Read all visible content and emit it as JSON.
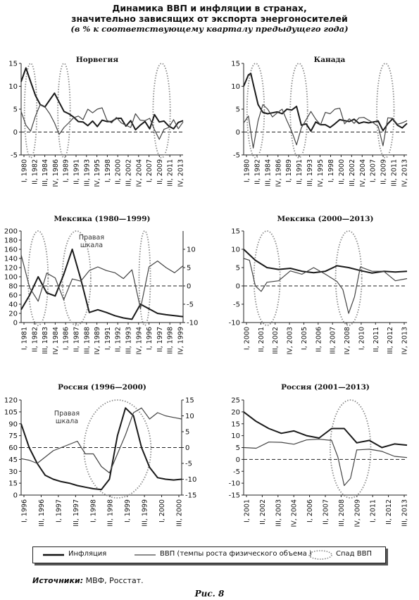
{
  "title_line1": "Динамика ВВП и инфляции в странах,",
  "title_line2": "значительно зависящих от экспорта энергоносителей",
  "subtitle": "(в % к соответствующему кварталу предыдущего года)",
  "legend": {
    "inflation": "Инфляция",
    "gdp": "ВВП (темпы роста физического объема )",
    "recession": "Спад ВВП"
  },
  "sources_label": "Источники:",
  "sources_text": " МВФ, Росстат.",
  "figure_label": "Рис. 8",
  "colors": {
    "inflation": "#1a1a1a",
    "gdp": "#444444",
    "recession": "#8a8a8a",
    "zero_line": "#222222"
  },
  "chart_data": [
    {
      "type": "line",
      "title": "Норвегия",
      "x_tick_labels": [
        "I, 1980",
        "II, 1982",
        "III, 1984",
        "IV, 1986",
        "I, 1989",
        "II, 1991",
        "III, 1993",
        "IV, 1995",
        "I, 1998",
        "II, 2000",
        "III, 2002",
        "IV, 2004",
        "I, 2007",
        "II, 2009",
        "III, 2011",
        "IV, 2013"
      ],
      "ylim": [
        -5,
        15
      ],
      "y_ticks": [
        -5,
        0,
        5,
        10,
        15
      ],
      "recession_periods": [
        "1981-1982",
        "1988-1989",
        "2008-2010"
      ],
      "series": [
        {
          "role": "inflation",
          "x": [
            1980,
            1981,
            1982,
            1983,
            1984,
            1985,
            1986,
            1987,
            1988,
            1989,
            1990,
            1991,
            1992,
            1993,
            1994,
            1995,
            1996,
            1997,
            1998,
            1999,
            2000,
            2001,
            2002,
            2003,
            2004,
            2005,
            2006,
            2007,
            2008,
            2009,
            2010,
            2011,
            2012,
            2013,
            2014
          ],
          "values": [
            11,
            14,
            11,
            8,
            6,
            5.5,
            7,
            8.5,
            6.5,
            4.5,
            4,
            3.3,
            2.3,
            2.2,
            1.4,
            2.4,
            1.2,
            2.6,
            2.3,
            2.3,
            3,
            3,
            1.3,
            2.5,
            0.5,
            1.5,
            2.3,
            0.7,
            3.8,
            2.2,
            2.4,
            1.3,
            0.7,
            2.1,
            2.5
          ]
        },
        {
          "role": "gdp",
          "x": [
            1980,
            1981,
            1982,
            1983,
            1984,
            1985,
            1986,
            1987,
            1988,
            1989,
            1990,
            1991,
            1992,
            1993,
            1994,
            1995,
            1996,
            1997,
            1998,
            1999,
            2000,
            2001,
            2002,
            2003,
            2004,
            2005,
            2006,
            2007,
            2008,
            2009,
            2010,
            2011,
            2012,
            2013,
            2014
          ],
          "values": [
            4.5,
            1.5,
            0.2,
            3.5,
            6,
            5.5,
            4,
            2,
            -0.5,
            1,
            2,
            3.1,
            3.5,
            2.7,
            5,
            4.2,
            5,
            5.3,
            2.6,
            2,
            3.2,
            2,
            1.5,
            1,
            4,
            2.6,
            2.5,
            3,
            0.5,
            -1.6,
            0.6,
            1,
            2.7,
            0.7,
            2.2
          ]
        }
      ]
    },
    {
      "type": "line",
      "title": "Канада",
      "x_tick_labels": [
        "I, 1980",
        "II, 1982",
        "III, 1984",
        "IV, 1986",
        "I, 1989",
        "II, 1991",
        "III, 1993",
        "IV, 1995",
        "I, 1998",
        "II, 2000",
        "III, 2002",
        "IV, 2004",
        "I, 2007",
        "II, 2009",
        "III, 2011",
        "IV, 2013"
      ],
      "ylim": [
        -5,
        15
      ],
      "y_ticks": [
        -5,
        0,
        5,
        10,
        15
      ],
      "recession_periods": [
        "1981-1983",
        "1990-1992",
        "2008-2010"
      ],
      "series": [
        {
          "role": "inflation",
          "x": [
            1980,
            1981,
            1981.5,
            1982,
            1983,
            1984,
            1985,
            1986,
            1987,
            1988,
            1989,
            1990,
            1991,
            1992,
            1993,
            1994,
            1995,
            1996,
            1997,
            1998,
            1999,
            2000,
            2001,
            2002,
            2003,
            2004,
            2005,
            2006,
            2007,
            2008,
            2009,
            2010,
            2011,
            2012,
            2013,
            2014
          ],
          "values": [
            10,
            12.5,
            12.8,
            10.5,
            6,
            4.3,
            4,
            4.2,
            4.4,
            4,
            5,
            4.8,
            5.6,
            1.5,
            1.8,
            0.2,
            2.2,
            1.6,
            1.6,
            1,
            1.8,
            2.7,
            2.5,
            2.3,
            2.8,
            1.9,
            2.2,
            2,
            2.2,
            2.4,
            0.3,
            1.8,
            2.9,
            1.5,
            0.9,
            1.9
          ]
        },
        {
          "role": "gdp",
          "x": [
            1980,
            1981,
            1982,
            1983,
            1984,
            1985,
            1986,
            1987,
            1988,
            1989,
            1990,
            1991,
            1992,
            1993,
            1994,
            1995,
            1996,
            1997,
            1998,
            1999,
            2000,
            2001,
            2002,
            2003,
            2004,
            2005,
            2006,
            2007,
            2008,
            2009,
            2010,
            2011,
            2012,
            2013,
            2014
          ],
          "values": [
            2,
            3.5,
            -3.5,
            2.5,
            6,
            5,
            3.3,
            4.2,
            5,
            2.5,
            0.2,
            -2.8,
            0.9,
            2.7,
            4.5,
            2.8,
            1.6,
            4.3,
            4,
            5,
            5.2,
            1.8,
            2.9,
            1.9,
            3.1,
            3.2,
            2.6,
            2,
            1.2,
            -3,
            3.1,
            3,
            1.7,
            2,
            2.5
          ]
        }
      ]
    },
    {
      "type": "line",
      "title": "Мексика (1980—1999)",
      "x_tick_labels": [
        "I, 1981",
        "II, 1982",
        "III, 1983",
        "IV, 1984",
        "I, 1986",
        "II, 1987",
        "III, 1988",
        "IV, 1989",
        "I, 1991",
        "II, 1992",
        "III, 1993",
        "IV, 1994",
        "I, 1996",
        "II, 1997",
        "III, 1998",
        "IV, 1999"
      ],
      "y_left_ticks": [
        0,
        20,
        40,
        60,
        80,
        100,
        120,
        140,
        160,
        180,
        200
      ],
      "y_right_ticks": [
        -10,
        -5,
        0,
        5,
        10
      ],
      "ylim_left": [
        0,
        200
      ],
      "ylim_right": [
        -10,
        15
      ],
      "annotation": "Правая шкала",
      "recession_periods": [
        "1982-1983",
        "1986-1988",
        "1995"
      ],
      "series": [
        {
          "role": "inflation",
          "axis": "left",
          "x": [
            1981,
            1982,
            1983,
            1984,
            1985,
            1986,
            1987,
            1988,
            1989,
            1990,
            1991,
            1992,
            1993,
            1994,
            1995,
            1996,
            1997,
            1998,
            1999,
            2000
          ],
          "values": [
            28,
            60,
            100,
            65,
            58,
            105,
            160,
            95,
            22,
            28,
            22,
            15,
            10,
            7,
            40,
            30,
            20,
            17,
            15,
            13
          ]
        },
        {
          "role": "gdp",
          "axis": "right",
          "x": [
            1981,
            1982,
            1983,
            1984,
            1985,
            1986,
            1987,
            1988,
            1989,
            1990,
            1991,
            1992,
            1993,
            1994,
            1995,
            1996,
            1997,
            1998,
            1999,
            2000
          ],
          "values": [
            8.5,
            -0.5,
            -4.2,
            3.5,
            2.2,
            -3.8,
            1.9,
            1.3,
            4.2,
            5.2,
            4.2,
            3.6,
            2,
            4.4,
            -6.2,
            5.2,
            6.8,
            5,
            3.6,
            5.5
          ]
        }
      ]
    },
    {
      "type": "line",
      "title": "Мексика (2000—2013)",
      "x_tick_labels": [
        "I, 2000",
        "II, 2001",
        "III, 2002",
        "IV, 2003",
        "I, 2005",
        "II, 2006",
        "III, 2007",
        "IV, 2008",
        "I, 2010",
        "II, 2011",
        "III, 2012",
        "IV, 2013"
      ],
      "ylim": [
        -10,
        15
      ],
      "y_ticks": [
        -10,
        -5,
        0,
        5,
        10,
        15
      ],
      "recession_periods": [
        "2001-2002",
        "2008-2009"
      ],
      "series": [
        {
          "role": "inflation",
          "x": [
            2000,
            2001,
            2002,
            2003,
            2004,
            2005,
            2006,
            2007,
            2008,
            2009,
            2010,
            2011,
            2012,
            2013,
            2014
          ],
          "values": [
            10,
            7,
            5,
            4.5,
            4.8,
            4,
            3.6,
            4,
            5.5,
            5,
            4.2,
            3.5,
            4,
            3.8,
            4
          ]
        },
        {
          "role": "gdp",
          "x": [
            2000,
            2000.5,
            2001,
            2001.5,
            2002,
            2003,
            2004,
            2005,
            2006,
            2007,
            2008,
            2008.5,
            2009,
            2009.5,
            2010,
            2011,
            2012,
            2013,
            2014
          ],
          "values": [
            7.5,
            7,
            0,
            -1.5,
            1,
            1.4,
            4.1,
            3.2,
            5,
            3.2,
            1.2,
            -1,
            -7.5,
            -3,
            5.2,
            4,
            4,
            1.4,
            2
          ]
        }
      ]
    },
    {
      "type": "line",
      "title": "Россия (1996—2000)",
      "x_tick_labels": [
        "I, 1996",
        "III, 1996",
        "I, 1997",
        "III, 1997",
        "I, 1998",
        "III, 1998",
        "I, 1999",
        "III, 1999",
        "I, 2000",
        "III, 2000"
      ],
      "y_left_ticks": [
        0,
        15,
        30,
        45,
        60,
        75,
        90,
        105,
        120
      ],
      "y_right_ticks": [
        -15,
        -10,
        -5,
        0,
        5,
        10,
        15
      ],
      "ylim_left": [
        0,
        120
      ],
      "ylim_right": [
        -15,
        15
      ],
      "annotation": "Правая шкала",
      "recession_periods": [
        "1998-1999"
      ],
      "series": [
        {
          "role": "inflation",
          "axis": "left",
          "x": [
            1996,
            1996.25,
            1996.5,
            1996.75,
            1997,
            1997.25,
            1997.5,
            1997.75,
            1998,
            1998.25,
            1998.5,
            1998.75,
            1999,
            1999.25,
            1999.5,
            1999.75,
            2000,
            2000.25,
            2000.5,
            2000.75,
            2001
          ],
          "values": [
            90,
            60,
            40,
            25,
            20,
            17,
            15,
            12,
            10,
            8,
            7,
            20,
            75,
            110,
            100,
            60,
            35,
            22,
            20,
            19,
            20
          ]
        },
        {
          "role": "gdp",
          "axis": "right",
          "x": [
            1996,
            1996.25,
            1996.5,
            1996.75,
            1997,
            1997.25,
            1997.5,
            1997.75,
            1998,
            1998.25,
            1998.5,
            1998.75,
            1999,
            1999.25,
            1999.5,
            1999.75,
            2000,
            2000.25,
            2000.5,
            2000.75,
            2001
          ],
          "values": [
            -3.5,
            -4,
            -5,
            -3,
            -1,
            0,
            1,
            2,
            -2,
            -2,
            -6,
            -8,
            -2,
            4,
            11,
            12.5,
            9,
            11,
            10,
            9.5,
            9
          ]
        }
      ]
    },
    {
      "type": "line",
      "title": "Россия (2001—2013)",
      "x_tick_labels": [
        "I, 2001",
        "II, 2002",
        "III, 2003",
        "IV, 2004",
        "I, 2006",
        "II, 2007",
        "III, 2008",
        "IV, 2009",
        "I, 2011",
        "II, 2012",
        "III, 2013"
      ],
      "ylim": [
        -15,
        25
      ],
      "y_ticks": [
        -15,
        -10,
        -5,
        0,
        5,
        10,
        15,
        20,
        25
      ],
      "recession_periods": [
        "2008-2010"
      ],
      "series": [
        {
          "role": "inflation",
          "x": [
            2001,
            2002,
            2003,
            2004,
            2005,
            2006,
            2007,
            2008,
            2009,
            2010,
            2011,
            2012,
            2013,
            2014
          ],
          "values": [
            20,
            16,
            13,
            11,
            12,
            10,
            9,
            13,
            13,
            7,
            8,
            5,
            6.5,
            6
          ]
        },
        {
          "role": "gdp",
          "x": [
            2001,
            2002,
            2003,
            2004,
            2005,
            2006,
            2007,
            2008,
            2008.5,
            2009,
            2009.5,
            2010,
            2011,
            2012,
            2013,
            2014
          ],
          "values": [
            5,
            4.7,
            7.3,
            7.2,
            6.4,
            8.2,
            8.5,
            8,
            1,
            -11,
            -8,
            4,
            4.3,
            3.4,
            1.3,
            0.8
          ]
        }
      ]
    }
  ]
}
